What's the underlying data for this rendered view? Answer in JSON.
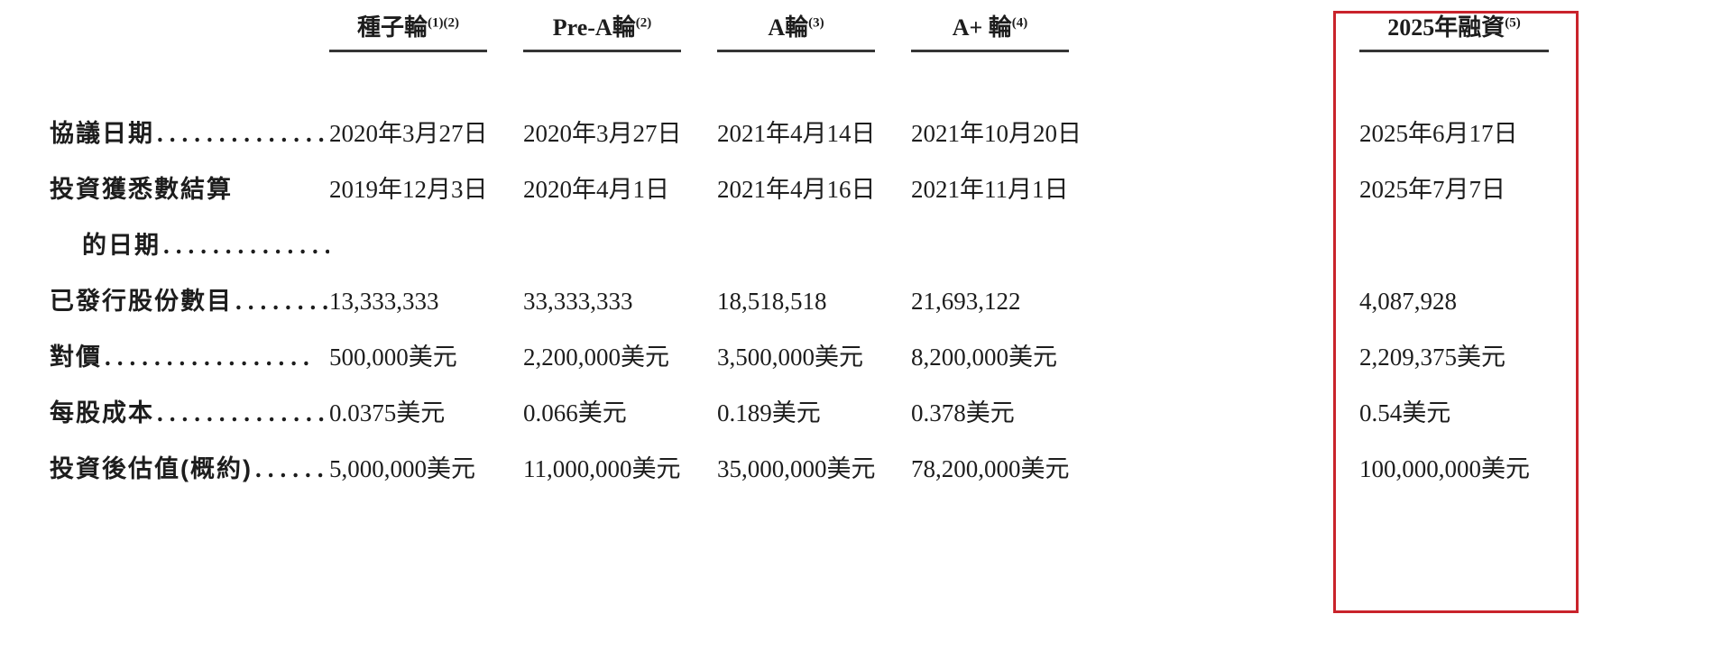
{
  "page": {
    "background": "#ffffff",
    "text_color": "#1d1d1d"
  },
  "table": {
    "columns": [
      {
        "label": "種子輪",
        "sup": "(1)(2)",
        "highlighted": false
      },
      {
        "label": "Pre-A輪",
        "sup": "(2)",
        "highlighted": false
      },
      {
        "label": "A輪",
        "sup": "(3)",
        "highlighted": false
      },
      {
        "label": "A+ 輪",
        "sup": "(4)",
        "highlighted": false
      },
      {
        "label": "2025年融資",
        "sup": "(5)",
        "highlighted": true
      }
    ],
    "rows": [
      {
        "label": "協議日期",
        "indent": false,
        "leader": "..............",
        "values": [
          "2020年3月27日",
          "2020年3月27日",
          "2021年4月14日",
          "2021年10月20日",
          "2025年6月17日"
        ]
      },
      {
        "label": "投資獲悉數結算",
        "indent": false,
        "leader": "",
        "values": [
          "2019年12月3日",
          "2020年4月1日",
          "2021年4月16日",
          "2021年11月1日",
          "2025年7月7日"
        ]
      },
      {
        "label": "的日期",
        "indent": true,
        "leader": "..............",
        "values": [
          "",
          "",
          "",
          "",
          ""
        ]
      },
      {
        "label": "已發行股份數目",
        "indent": false,
        "leader": "........",
        "values": [
          "13,333,333",
          "33,333,333",
          "18,518,518",
          "21,693,122",
          "4,087,928"
        ]
      },
      {
        "label": "對價",
        "indent": false,
        "leader": ".................",
        "values": [
          "500,000美元",
          "2,200,000美元",
          "3,500,000美元",
          "8,200,000美元",
          "2,209,375美元"
        ]
      },
      {
        "label": "每股成本",
        "indent": false,
        "leader": "..............",
        "values": [
          "0.0375美元",
          "0.066美元",
          "0.189美元",
          "0.378美元",
          "0.54美元"
        ]
      },
      {
        "label": "投資後估值(概約)",
        "indent": false,
        "leader": "......",
        "values": [
          "5,000,000美元",
          "11,000,000美元",
          "35,000,000美元",
          "78,200,000美元",
          "100,000,000美元"
        ]
      }
    ],
    "highlight": {
      "column_index": 4,
      "color": "#c9232b"
    }
  }
}
